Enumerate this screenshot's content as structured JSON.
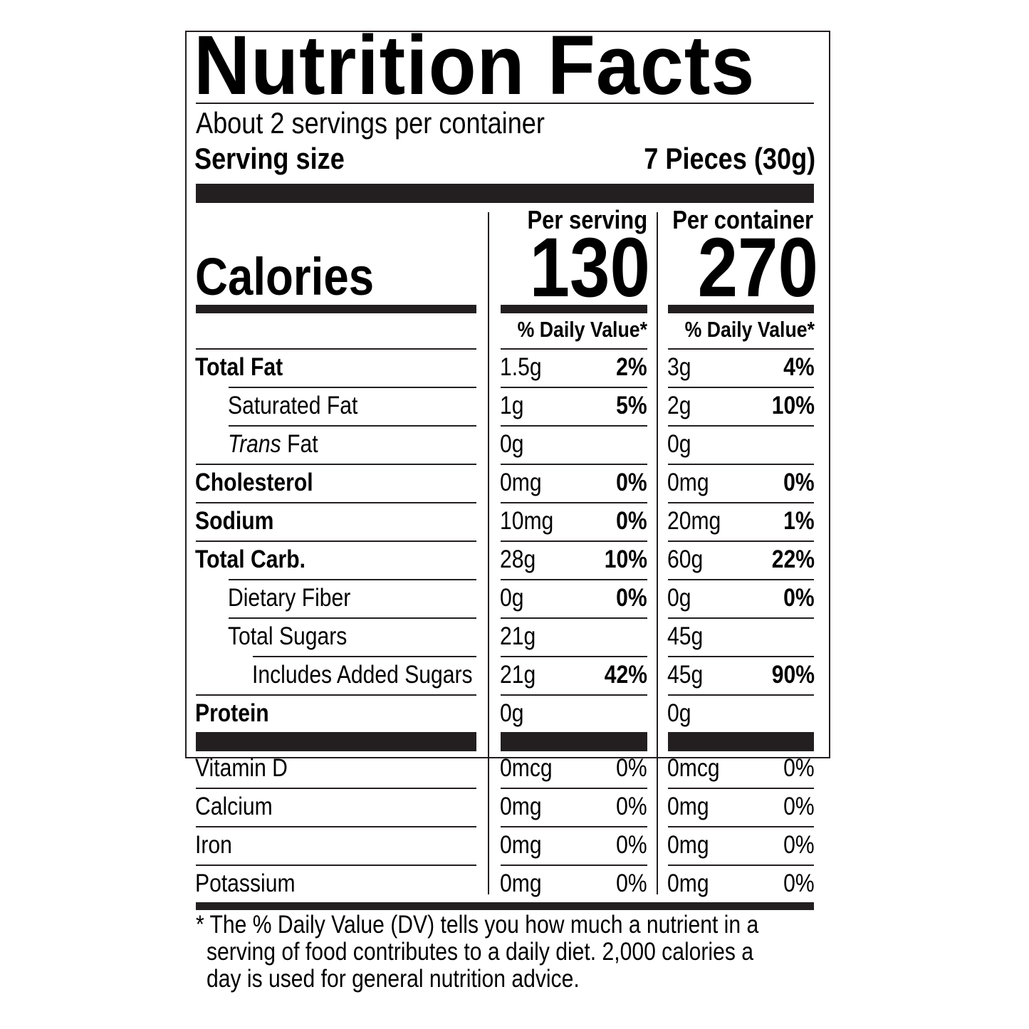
{
  "title": "Nutrition Facts",
  "servings_per_container": "About 2 servings per container",
  "serving_size_label": "Serving size",
  "serving_size_value": "7 Pieces (30g)",
  "calories_label": "Calories",
  "per_serving_label": "Per serving",
  "per_container_label": "Per container",
  "calories_per_serving": "130",
  "calories_per_container": "270",
  "daily_value_label": "% Daily Value*",
  "nutrients": [
    {
      "name": "Total Fat",
      "bold": true,
      "indent": 0,
      "serving_amount": "1.5g",
      "serving_dv": "2%",
      "container_amount": "3g",
      "container_dv": "4%"
    },
    {
      "name": "Saturated Fat",
      "bold": false,
      "indent": 1,
      "serving_amount": "1g",
      "serving_dv": "5%",
      "container_amount": "2g",
      "container_dv": "10%"
    },
    {
      "name_italic": "Trans",
      "name": " Fat",
      "bold": false,
      "indent": 1,
      "serving_amount": "0g",
      "serving_dv": "",
      "container_amount": "0g",
      "container_dv": ""
    },
    {
      "name": "Cholesterol",
      "bold": true,
      "indent": 0,
      "serving_amount": "0mg",
      "serving_dv": "0%",
      "container_amount": "0mg",
      "container_dv": "0%"
    },
    {
      "name": "Sodium",
      "bold": true,
      "indent": 0,
      "serving_amount": "10mg",
      "serving_dv": "0%",
      "container_amount": "20mg",
      "container_dv": "1%"
    },
    {
      "name": "Total Carb.",
      "bold": true,
      "indent": 0,
      "serving_amount": "28g",
      "serving_dv": "10%",
      "container_amount": "60g",
      "container_dv": "22%"
    },
    {
      "name": "Dietary Fiber",
      "bold": false,
      "indent": 1,
      "serving_amount": "0g",
      "serving_dv": "0%",
      "container_amount": "0g",
      "container_dv": "0%"
    },
    {
      "name": "Total Sugars",
      "bold": false,
      "indent": 1,
      "serving_amount": "21g",
      "serving_dv": "",
      "container_amount": "45g",
      "container_dv": ""
    },
    {
      "name": "Includes Added Sugars",
      "bold": false,
      "indent": 2,
      "serving_amount": "21g",
      "serving_dv": "42%",
      "container_amount": "45g",
      "container_dv": "90%"
    },
    {
      "name": "Protein",
      "bold": true,
      "indent": 0,
      "serving_amount": "0g",
      "serving_dv": "",
      "container_amount": "0g",
      "container_dv": ""
    }
  ],
  "vitamins": [
    {
      "name": "Vitamin D",
      "serving_amount": "0mcg",
      "serving_dv": "0%",
      "container_amount": "0mcg",
      "container_dv": "0%"
    },
    {
      "name": "Calcium",
      "serving_amount": "0mg",
      "serving_dv": "0%",
      "container_amount": "0mg",
      "container_dv": "0%"
    },
    {
      "name": "Iron",
      "serving_amount": "0mg",
      "serving_dv": "0%",
      "container_amount": "0mg",
      "container_dv": "0%"
    },
    {
      "name": "Potassium",
      "serving_amount": "0mg",
      "serving_dv": "0%",
      "container_amount": "0mg",
      "container_dv": "0%"
    }
  ],
  "footnote": {
    "line1": "* The % Daily Value (DV) tells you how much a nutrient in a",
    "line2": "serving of food contributes to a daily diet. 2,000 calories a",
    "line3": "day is used for general nutrition advice."
  }
}
